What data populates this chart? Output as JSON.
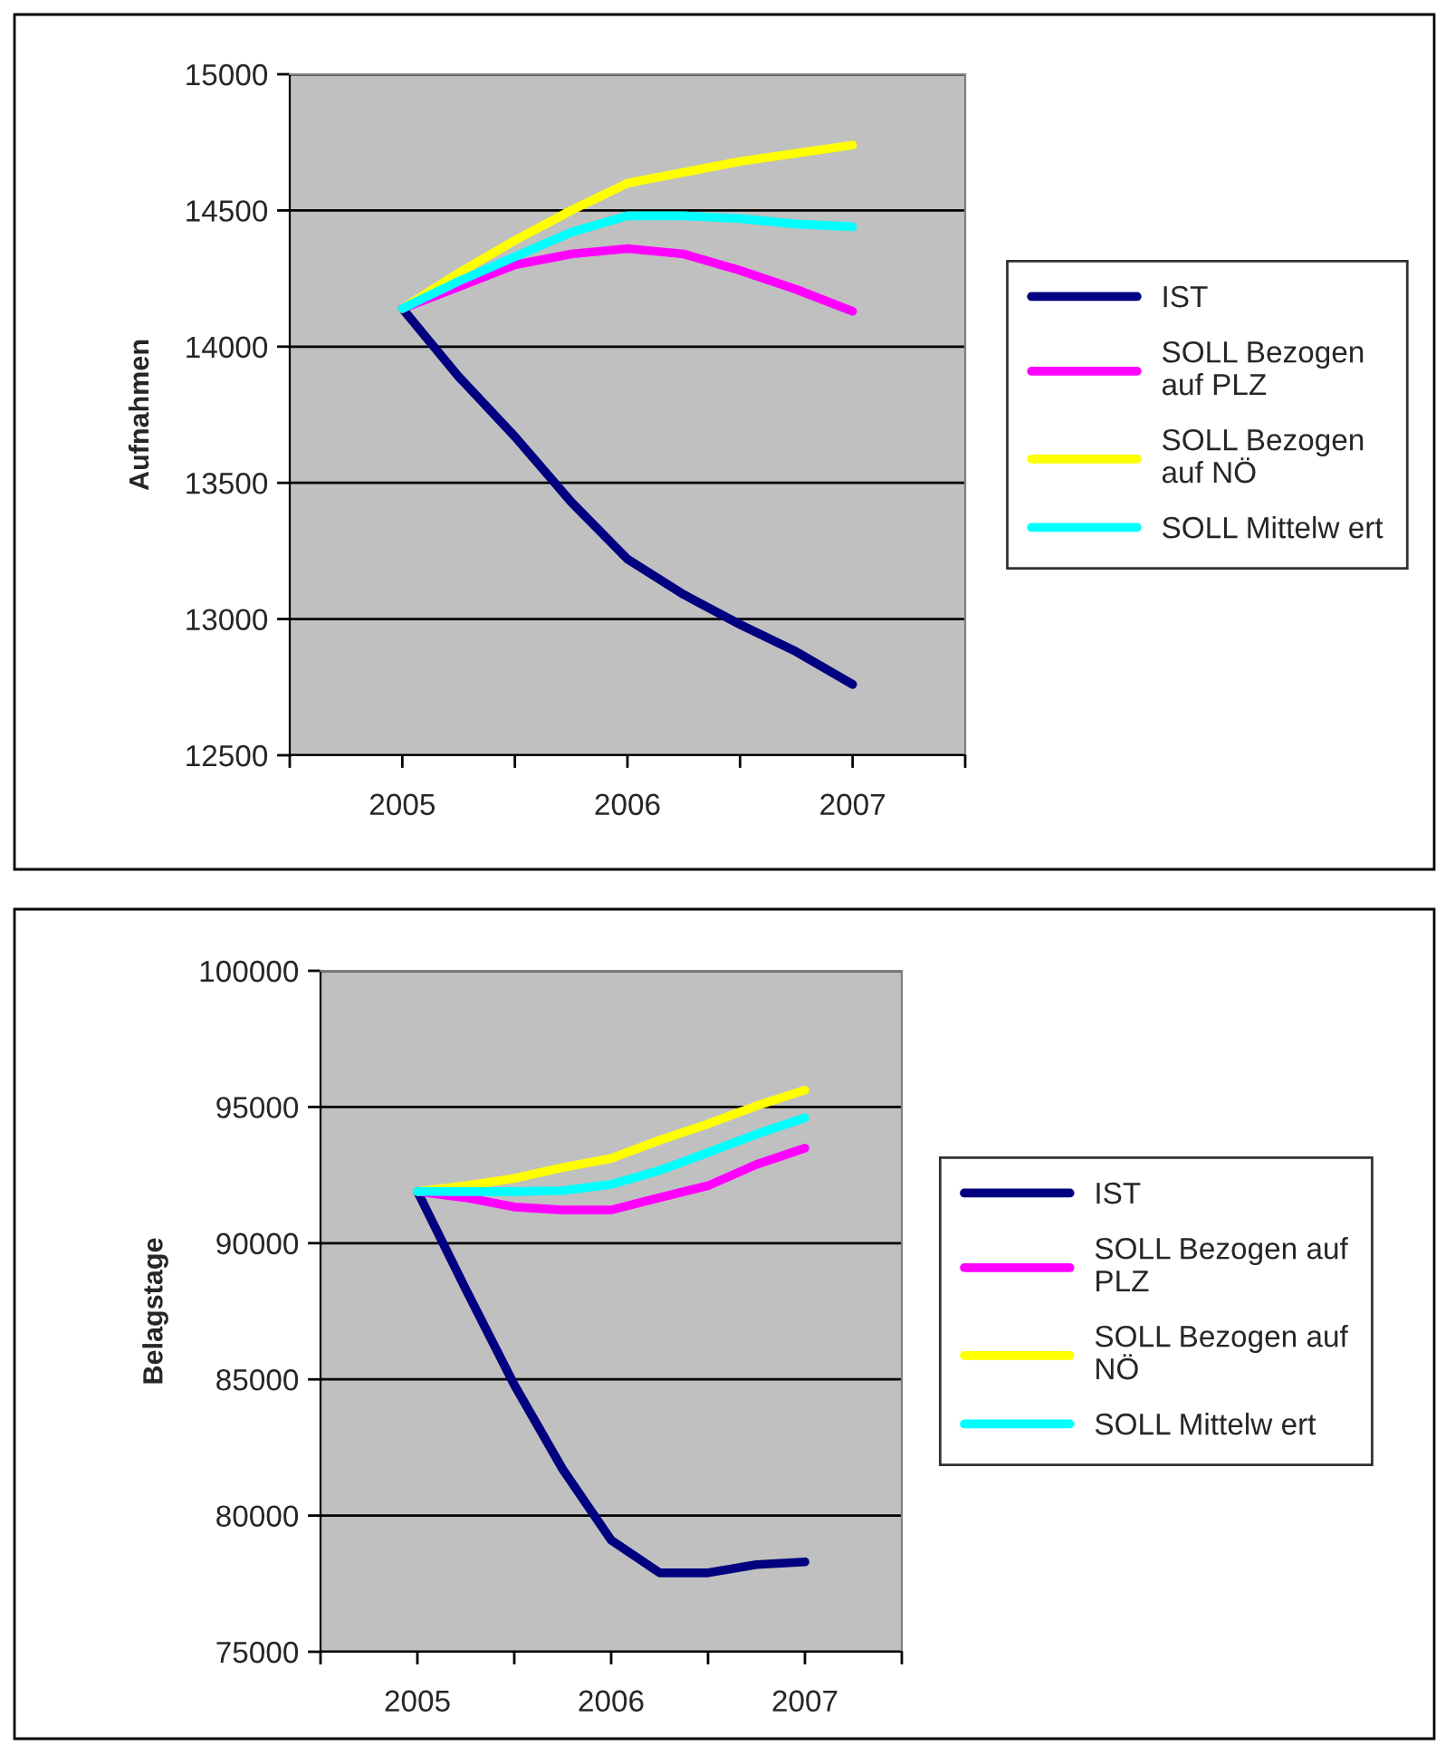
{
  "chart_data": [
    {
      "type": "line",
      "ylabel": "Aufnahmen",
      "xlim": [
        2004.5,
        2007.5
      ],
      "xticks": [
        {
          "value": 2004.5,
          "label": null
        },
        {
          "value": 2005,
          "label": "2005"
        },
        {
          "value": 2005.5,
          "label": null
        },
        {
          "value": 2006,
          "label": "2006"
        },
        {
          "value": 2006.5,
          "label": null
        },
        {
          "value": 2007,
          "label": "2007"
        },
        {
          "value": 2007.5,
          "label": null
        }
      ],
      "ylim": [
        12500,
        15000
      ],
      "yticks": [
        12500,
        13000,
        13500,
        14000,
        14500,
        15000
      ],
      "grid": "y",
      "legend": "right",
      "marker": "none",
      "line_style": "solid",
      "x": [
        2005,
        2005.25,
        2005.5,
        2005.75,
        2006,
        2006.25,
        2006.5,
        2006.75,
        2007
      ],
      "series": [
        {
          "name": "IST",
          "color": "#000080",
          "values": [
            14140,
            13890,
            13670,
            13430,
            13220,
            13090,
            12980,
            12880,
            12760
          ]
        },
        {
          "name": "SOLL Bezogen\nauf PLZ",
          "color": "#ff00ff",
          "values": [
            14140,
            14220,
            14300,
            14340,
            14360,
            14340,
            14280,
            14210,
            14130
          ]
        },
        {
          "name": "SOLL Bezogen\nauf NÖ",
          "color": "#ffff00",
          "values": [
            14140,
            14270,
            14390,
            14500,
            14600,
            14640,
            14680,
            14710,
            14740
          ]
        },
        {
          "name": "SOLL Mittelw ert",
          "color": "#00ffff",
          "values": [
            14140,
            14240,
            14330,
            14420,
            14480,
            14480,
            14470,
            14450,
            14440
          ]
        }
      ]
    },
    {
      "type": "line",
      "ylabel": "Belagstage",
      "xlim": [
        2004.5,
        2007.5
      ],
      "xticks": [
        {
          "value": 2004.5,
          "label": null
        },
        {
          "value": 2005,
          "label": "2005"
        },
        {
          "value": 2005.5,
          "label": null
        },
        {
          "value": 2006,
          "label": "2006"
        },
        {
          "value": 2006.5,
          "label": null
        },
        {
          "value": 2007,
          "label": "2007"
        },
        {
          "value": 2007.5,
          "label": null
        }
      ],
      "ylim": [
        75000,
        100000
      ],
      "yticks": [
        75000,
        80000,
        85000,
        90000,
        95000,
        100000
      ],
      "grid": "y",
      "legend": "right",
      "marker": "none",
      "line_style": "solid",
      "x": [
        2005,
        2005.25,
        2005.5,
        2005.75,
        2006,
        2006.25,
        2006.5,
        2006.75,
        2007
      ],
      "series": [
        {
          "name": "IST",
          "color": "#000080",
          "values": [
            91900,
            88300,
            84800,
            81700,
            79100,
            77900,
            77900,
            78200,
            78300
          ]
        },
        {
          "name": "SOLL Bezogen auf\nPLZ",
          "color": "#ff00ff",
          "values": [
            91900,
            91670,
            91330,
            91220,
            91220,
            91670,
            92110,
            92890,
            93490
          ]
        },
        {
          "name": "SOLL Bezogen auf\nNÖ",
          "color": "#ffff00",
          "values": [
            91900,
            92110,
            92380,
            92780,
            93110,
            93780,
            94380,
            95040,
            95620
          ]
        },
        {
          "name": "SOLL Mittelw ert",
          "color": "#00ffff",
          "values": [
            91900,
            91890,
            91890,
            91930,
            92160,
            92670,
            93330,
            94000,
            94600
          ]
        }
      ]
    }
  ]
}
